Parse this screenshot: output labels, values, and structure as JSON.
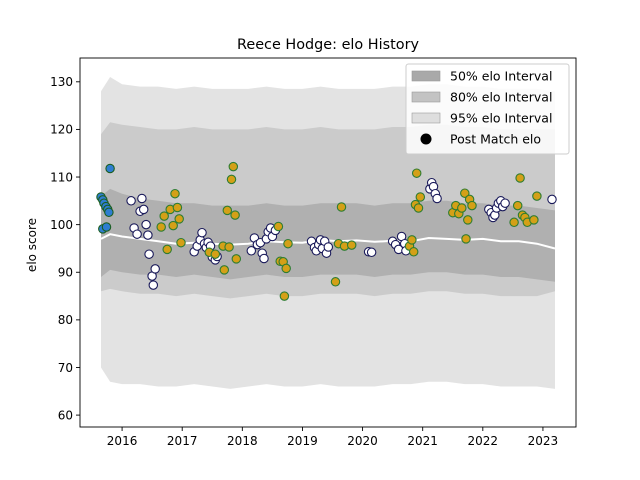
{
  "chart_data": {
    "type": "scatter",
    "title": "Reece Hodge: elo History",
    "xlabel": "",
    "ylabel": "elo score",
    "xlim": [
      2015.3,
      2023.55
    ],
    "ylim": [
      57.5,
      135
    ],
    "x_ticks": [
      2016,
      2017,
      2018,
      2019,
      2020,
      2021,
      2022,
      2023
    ],
    "y_ticks": [
      60,
      70,
      80,
      90,
      100,
      110,
      120,
      130
    ],
    "grid": false,
    "legend_position": "top-right",
    "legend": [
      {
        "label": "50% elo Interval",
        "kind": "patch",
        "color": "#a9a9a9"
      },
      {
        "label": "80% elo Interval",
        "kind": "patch",
        "color": "#c3c3c3"
      },
      {
        "label": "95% elo Interval",
        "kind": "patch",
        "color": "#dedede"
      },
      {
        "label": "Post Match elo",
        "kind": "marker",
        "color": "#000000"
      }
    ],
    "colors": {
      "band_95": "#e3e3e3",
      "band_80": "#cbcbcb",
      "band_50": "#b0b0b0",
      "mean_line": "#ffffff",
      "marker_default": "#ffffff",
      "marker_edge": "#1a1a5a",
      "marker_win": "#d4a017",
      "marker_win_edge": "#2e7d32",
      "marker_early": "#2e7dd1",
      "marker_early_edge": "#1b5e20"
    },
    "intervals": {
      "x": [
        2015.65,
        2015.8,
        2016.0,
        2016.3,
        2016.6,
        2016.9,
        2017.2,
        2017.5,
        2017.8,
        2018.1,
        2018.4,
        2018.7,
        2019.0,
        2019.3,
        2019.6,
        2019.9,
        2020.2,
        2020.5,
        2020.8,
        2021.1,
        2021.4,
        2021.7,
        2022.0,
        2022.3,
        2022.6,
        2022.9,
        2023.2
      ],
      "mean": [
        97.0,
        98.0,
        97.5,
        97.0,
        96.5,
        96.0,
        96.2,
        96.0,
        95.8,
        96.0,
        96.5,
        96.3,
        96.2,
        96.8,
        96.5,
        96.7,
        96.4,
        96.6,
        96.5,
        97.2,
        97.0,
        96.8,
        97.0,
        96.5,
        96.5,
        96.0,
        95.0
      ],
      "p50_low": [
        89.0,
        90.5,
        90.0,
        89.5,
        89.5,
        89.0,
        89.5,
        89.0,
        88.5,
        89.0,
        89.5,
        89.0,
        89.0,
        89.5,
        89.5,
        89.5,
        89.0,
        89.5,
        89.5,
        90.0,
        90.0,
        89.5,
        89.5,
        89.0,
        89.0,
        88.5,
        88.0
      ],
      "p50_high": [
        106.0,
        107.5,
        106.5,
        105.5,
        105.0,
        104.5,
        104.5,
        104.0,
        104.0,
        104.0,
        104.5,
        104.0,
        104.0,
        104.5,
        104.5,
        104.5,
        104.0,
        104.5,
        104.5,
        105.0,
        105.0,
        104.5,
        104.5,
        104.0,
        104.0,
        103.5,
        103.0
      ],
      "p80_low": [
        86.0,
        86.5,
        86.0,
        85.5,
        85.5,
        85.0,
        85.5,
        85.0,
        84.5,
        85.0,
        85.5,
        85.0,
        85.0,
        85.5,
        85.5,
        85.5,
        85.0,
        85.5,
        85.5,
        86.0,
        86.0,
        85.5,
        85.5,
        85.0,
        85.0,
        85.0,
        86.0
      ],
      "p80_high": [
        119.0,
        121.5,
        121.0,
        120.5,
        120.0,
        120.0,
        120.5,
        120.0,
        120.0,
        120.0,
        120.5,
        120.0,
        120.0,
        120.5,
        120.0,
        120.0,
        120.0,
        120.5,
        120.5,
        121.0,
        121.0,
        120.5,
        120.5,
        120.0,
        120.0,
        120.0,
        120.0
      ],
      "p95_low": [
        70.0,
        67.0,
        66.5,
        66.5,
        66.0,
        66.0,
        66.5,
        66.0,
        65.5,
        66.0,
        66.5,
        66.0,
        66.0,
        66.5,
        66.0,
        66.0,
        66.0,
        66.5,
        66.5,
        67.0,
        67.0,
        66.5,
        66.5,
        66.0,
        66.0,
        66.0,
        65.5
      ],
      "p95_high": [
        128.0,
        131.0,
        129.5,
        129.0,
        129.0,
        128.5,
        129.0,
        128.5,
        128.5,
        128.5,
        129.0,
        128.5,
        128.5,
        129.0,
        128.5,
        128.5,
        128.5,
        129.0,
        129.0,
        129.5,
        129.5,
        129.0,
        129.0,
        128.5,
        128.5,
        128.5,
        128.0
      ]
    },
    "series": [
      {
        "name": "Post Match elo",
        "points": [
          {
            "x": 2015.65,
            "y": 105.8,
            "style": "early"
          },
          {
            "x": 2015.68,
            "y": 105.2,
            "style": "early"
          },
          {
            "x": 2015.7,
            "y": 104.5,
            "style": "early"
          },
          {
            "x": 2015.73,
            "y": 103.8,
            "style": "early"
          },
          {
            "x": 2015.76,
            "y": 103.2,
            "style": "early"
          },
          {
            "x": 2015.78,
            "y": 102.6,
            "style": "early"
          },
          {
            "x": 2015.8,
            "y": 111.8,
            "style": "early"
          },
          {
            "x": 2015.68,
            "y": 99.1,
            "style": "early"
          },
          {
            "x": 2015.74,
            "y": 99.5,
            "style": "early"
          },
          {
            "x": 2016.15,
            "y": 105.0,
            "style": "default"
          },
          {
            "x": 2016.2,
            "y": 99.3,
            "style": "default"
          },
          {
            "x": 2016.25,
            "y": 98.0,
            "style": "default"
          },
          {
            "x": 2016.3,
            "y": 102.8,
            "style": "default"
          },
          {
            "x": 2016.33,
            "y": 105.5,
            "style": "default"
          },
          {
            "x": 2016.36,
            "y": 103.2,
            "style": "default"
          },
          {
            "x": 2016.4,
            "y": 100.0,
            "style": "default"
          },
          {
            "x": 2016.43,
            "y": 97.8,
            "style": "default"
          },
          {
            "x": 2016.45,
            "y": 93.8,
            "style": "default"
          },
          {
            "x": 2016.5,
            "y": 89.2,
            "style": "default"
          },
          {
            "x": 2016.52,
            "y": 87.3,
            "style": "default"
          },
          {
            "x": 2016.55,
            "y": 90.7,
            "style": "default"
          },
          {
            "x": 2016.65,
            "y": 99.5,
            "style": "win"
          },
          {
            "x": 2016.7,
            "y": 101.8,
            "style": "win"
          },
          {
            "x": 2016.75,
            "y": 94.8,
            "style": "win"
          },
          {
            "x": 2016.8,
            "y": 103.2,
            "style": "win"
          },
          {
            "x": 2016.85,
            "y": 99.8,
            "style": "win"
          },
          {
            "x": 2016.88,
            "y": 106.5,
            "style": "win"
          },
          {
            "x": 2016.92,
            "y": 103.6,
            "style": "win"
          },
          {
            "x": 2016.95,
            "y": 101.2,
            "style": "win"
          },
          {
            "x": 2016.98,
            "y": 96.2,
            "style": "win"
          },
          {
            "x": 2017.2,
            "y": 94.3,
            "style": "default"
          },
          {
            "x": 2017.25,
            "y": 95.5,
            "style": "default"
          },
          {
            "x": 2017.3,
            "y": 96.8,
            "style": "default"
          },
          {
            "x": 2017.33,
            "y": 98.3,
            "style": "default"
          },
          {
            "x": 2017.37,
            "y": 96.0,
            "style": "default"
          },
          {
            "x": 2017.4,
            "y": 95.2,
            "style": "default"
          },
          {
            "x": 2017.43,
            "y": 96.3,
            "style": "default"
          },
          {
            "x": 2017.47,
            "y": 95.5,
            "style": "default"
          },
          {
            "x": 2017.5,
            "y": 93.2,
            "style": "default"
          },
          {
            "x": 2017.55,
            "y": 92.6,
            "style": "default"
          },
          {
            "x": 2017.58,
            "y": 93.3,
            "style": "default"
          },
          {
            "x": 2017.45,
            "y": 94.2,
            "style": "win"
          },
          {
            "x": 2017.55,
            "y": 93.8,
            "style": "win"
          },
          {
            "x": 2017.68,
            "y": 95.5,
            "style": "win"
          },
          {
            "x": 2017.7,
            "y": 90.5,
            "style": "win"
          },
          {
            "x": 2017.75,
            "y": 103.0,
            "style": "win"
          },
          {
            "x": 2017.78,
            "y": 95.3,
            "style": "win"
          },
          {
            "x": 2017.82,
            "y": 109.5,
            "style": "win"
          },
          {
            "x": 2017.85,
            "y": 112.2,
            "style": "win"
          },
          {
            "x": 2017.88,
            "y": 102.0,
            "style": "win"
          },
          {
            "x": 2017.9,
            "y": 92.8,
            "style": "win"
          },
          {
            "x": 2018.15,
            "y": 94.5,
            "style": "default"
          },
          {
            "x": 2018.2,
            "y": 97.2,
            "style": "default"
          },
          {
            "x": 2018.25,
            "y": 95.8,
            "style": "default"
          },
          {
            "x": 2018.3,
            "y": 96.2,
            "style": "default"
          },
          {
            "x": 2018.33,
            "y": 94.0,
            "style": "default"
          },
          {
            "x": 2018.36,
            "y": 92.9,
            "style": "default"
          },
          {
            "x": 2018.4,
            "y": 97.0,
            "style": "default"
          },
          {
            "x": 2018.43,
            "y": 98.5,
            "style": "default"
          },
          {
            "x": 2018.47,
            "y": 99.3,
            "style": "default"
          },
          {
            "x": 2018.5,
            "y": 97.5,
            "style": "default"
          },
          {
            "x": 2018.55,
            "y": 98.8,
            "style": "default"
          },
          {
            "x": 2018.6,
            "y": 99.6,
            "style": "win"
          },
          {
            "x": 2018.63,
            "y": 92.3,
            "style": "win"
          },
          {
            "x": 2018.68,
            "y": 92.2,
            "style": "win"
          },
          {
            "x": 2018.7,
            "y": 85.0,
            "style": "win"
          },
          {
            "x": 2018.73,
            "y": 90.8,
            "style": "win"
          },
          {
            "x": 2018.76,
            "y": 96.0,
            "style": "win"
          },
          {
            "x": 2019.15,
            "y": 96.5,
            "style": "default"
          },
          {
            "x": 2019.2,
            "y": 95.2,
            "style": "default"
          },
          {
            "x": 2019.23,
            "y": 94.5,
            "style": "default"
          },
          {
            "x": 2019.27,
            "y": 95.8,
            "style": "default"
          },
          {
            "x": 2019.3,
            "y": 96.8,
            "style": "default"
          },
          {
            "x": 2019.33,
            "y": 95.0,
            "style": "default"
          },
          {
            "x": 2019.37,
            "y": 96.5,
            "style": "default"
          },
          {
            "x": 2019.4,
            "y": 94.0,
            "style": "default"
          },
          {
            "x": 2019.43,
            "y": 95.3,
            "style": "default"
          },
          {
            "x": 2019.55,
            "y": 88.0,
            "style": "win"
          },
          {
            "x": 2019.6,
            "y": 96.0,
            "style": "win"
          },
          {
            "x": 2019.65,
            "y": 103.7,
            "style": "win"
          },
          {
            "x": 2019.7,
            "y": 95.5,
            "style": "win"
          },
          {
            "x": 2019.82,
            "y": 95.7,
            "style": "win"
          },
          {
            "x": 2020.1,
            "y": 94.3,
            "style": "default"
          },
          {
            "x": 2020.15,
            "y": 94.2,
            "style": "default"
          },
          {
            "x": 2020.5,
            "y": 96.5,
            "style": "default"
          },
          {
            "x": 2020.55,
            "y": 95.8,
            "style": "default"
          },
          {
            "x": 2020.6,
            "y": 94.8,
            "style": "default"
          },
          {
            "x": 2020.65,
            "y": 97.5,
            "style": "default"
          },
          {
            "x": 2020.7,
            "y": 96.0,
            "style": "default"
          },
          {
            "x": 2020.72,
            "y": 94.5,
            "style": "default"
          },
          {
            "x": 2020.78,
            "y": 95.5,
            "style": "win"
          },
          {
            "x": 2020.82,
            "y": 96.8,
            "style": "win"
          },
          {
            "x": 2020.85,
            "y": 94.3,
            "style": "win"
          },
          {
            "x": 2020.88,
            "y": 104.2,
            "style": "win"
          },
          {
            "x": 2020.9,
            "y": 110.8,
            "style": "win"
          },
          {
            "x": 2020.93,
            "y": 103.5,
            "style": "win"
          },
          {
            "x": 2020.96,
            "y": 105.8,
            "style": "win"
          },
          {
            "x": 2021.12,
            "y": 107.5,
            "style": "default"
          },
          {
            "x": 2021.15,
            "y": 108.8,
            "style": "default"
          },
          {
            "x": 2021.18,
            "y": 108.0,
            "style": "default"
          },
          {
            "x": 2021.21,
            "y": 106.5,
            "style": "default"
          },
          {
            "x": 2021.24,
            "y": 105.5,
            "style": "default"
          },
          {
            "x": 2021.5,
            "y": 102.5,
            "style": "win"
          },
          {
            "x": 2021.55,
            "y": 104.0,
            "style": "win"
          },
          {
            "x": 2021.6,
            "y": 102.3,
            "style": "win"
          },
          {
            "x": 2021.65,
            "y": 103.5,
            "style": "win"
          },
          {
            "x": 2021.7,
            "y": 106.6,
            "style": "win"
          },
          {
            "x": 2021.72,
            "y": 97.0,
            "style": "win"
          },
          {
            "x": 2021.75,
            "y": 101.0,
            "style": "win"
          },
          {
            "x": 2021.78,
            "y": 105.3,
            "style": "win"
          },
          {
            "x": 2021.82,
            "y": 104.0,
            "style": "win"
          },
          {
            "x": 2022.1,
            "y": 103.2,
            "style": "default"
          },
          {
            "x": 2022.14,
            "y": 102.5,
            "style": "default"
          },
          {
            "x": 2022.17,
            "y": 101.5,
            "style": "default"
          },
          {
            "x": 2022.2,
            "y": 102.0,
            "style": "default"
          },
          {
            "x": 2022.23,
            "y": 103.5,
            "style": "default"
          },
          {
            "x": 2022.26,
            "y": 104.5,
            "style": "default"
          },
          {
            "x": 2022.3,
            "y": 105.0,
            "style": "default"
          },
          {
            "x": 2022.33,
            "y": 103.8,
            "style": "default"
          },
          {
            "x": 2022.37,
            "y": 104.5,
            "style": "default"
          },
          {
            "x": 2022.52,
            "y": 100.5,
            "style": "win"
          },
          {
            "x": 2022.58,
            "y": 104.0,
            "style": "win"
          },
          {
            "x": 2022.62,
            "y": 109.8,
            "style": "win"
          },
          {
            "x": 2022.66,
            "y": 102.0,
            "style": "win"
          },
          {
            "x": 2022.7,
            "y": 101.5,
            "style": "win"
          },
          {
            "x": 2022.74,
            "y": 100.5,
            "style": "win"
          },
          {
            "x": 2022.85,
            "y": 101.0,
            "style": "win"
          },
          {
            "x": 2022.9,
            "y": 106.0,
            "style": "win"
          },
          {
            "x": 2023.15,
            "y": 105.3,
            "style": "default"
          }
        ]
      }
    ]
  }
}
